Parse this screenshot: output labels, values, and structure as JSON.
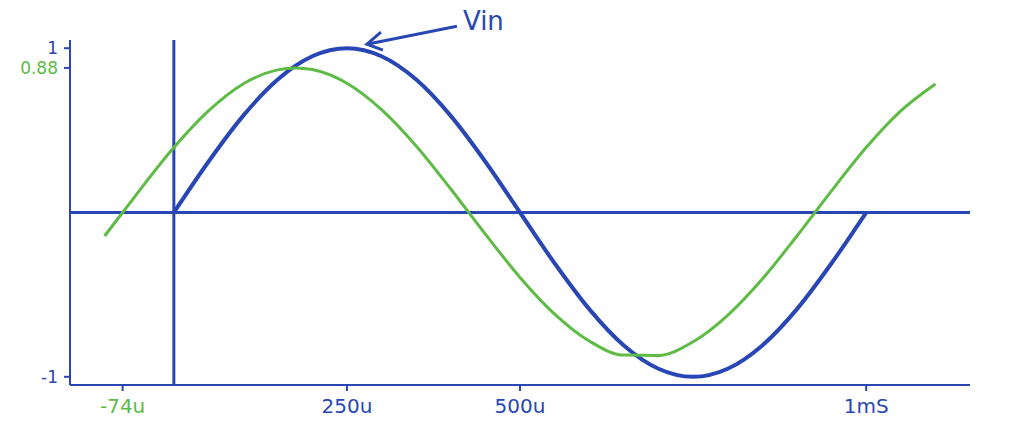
{
  "chart_data": {
    "type": "line",
    "x": [
      -100,
      -74,
      -50,
      0,
      50,
      100,
      150,
      176,
      200,
      250,
      300,
      350,
      400,
      450,
      500,
      550,
      600,
      650,
      700,
      750,
      800,
      850,
      900,
      950,
      1000,
      1050,
      1100
    ],
    "series": [
      {
        "name": "Vin",
        "color": "#2846b4",
        "values": [
          null,
          null,
          null,
          0,
          0.309,
          0.588,
          0.809,
          0.894,
          0.951,
          1,
          0.951,
          0.809,
          0.588,
          0.309,
          0,
          -0.309,
          -0.588,
          -0.809,
          -0.951,
          -1,
          -0.951,
          -0.809,
          -0.588,
          -0.309,
          0,
          null,
          null
        ]
      },
      {
        "color": "#5dbb46",
        "values": [
          -0.143,
          0,
          0.132,
          0.395,
          0.618,
          0.782,
          0.868,
          0.88,
          0.87,
          0.787,
          0.626,
          0.405,
          0.143,
          -0.132,
          -0.395,
          -0.618,
          -0.782,
          -0.868,
          -0.87,
          -0.787,
          -0.626,
          -0.405,
          -0.143,
          0.132,
          0.395,
          0.618,
          0.782
        ]
      }
    ],
    "xlim": [
      -150,
      1150
    ],
    "xticks": [
      {
        "value": -74,
        "label": "-74u"
      },
      {
        "value": 250,
        "label": "250u"
      },
      {
        "value": 500,
        "label": "500u"
      },
      {
        "value": 1000,
        "label": "1mS"
      }
    ],
    "ylim": [
      -1.05,
      1.05
    ],
    "yticks": [
      -1,
      0.88,
      1
    ],
    "grid": false
  }
}
